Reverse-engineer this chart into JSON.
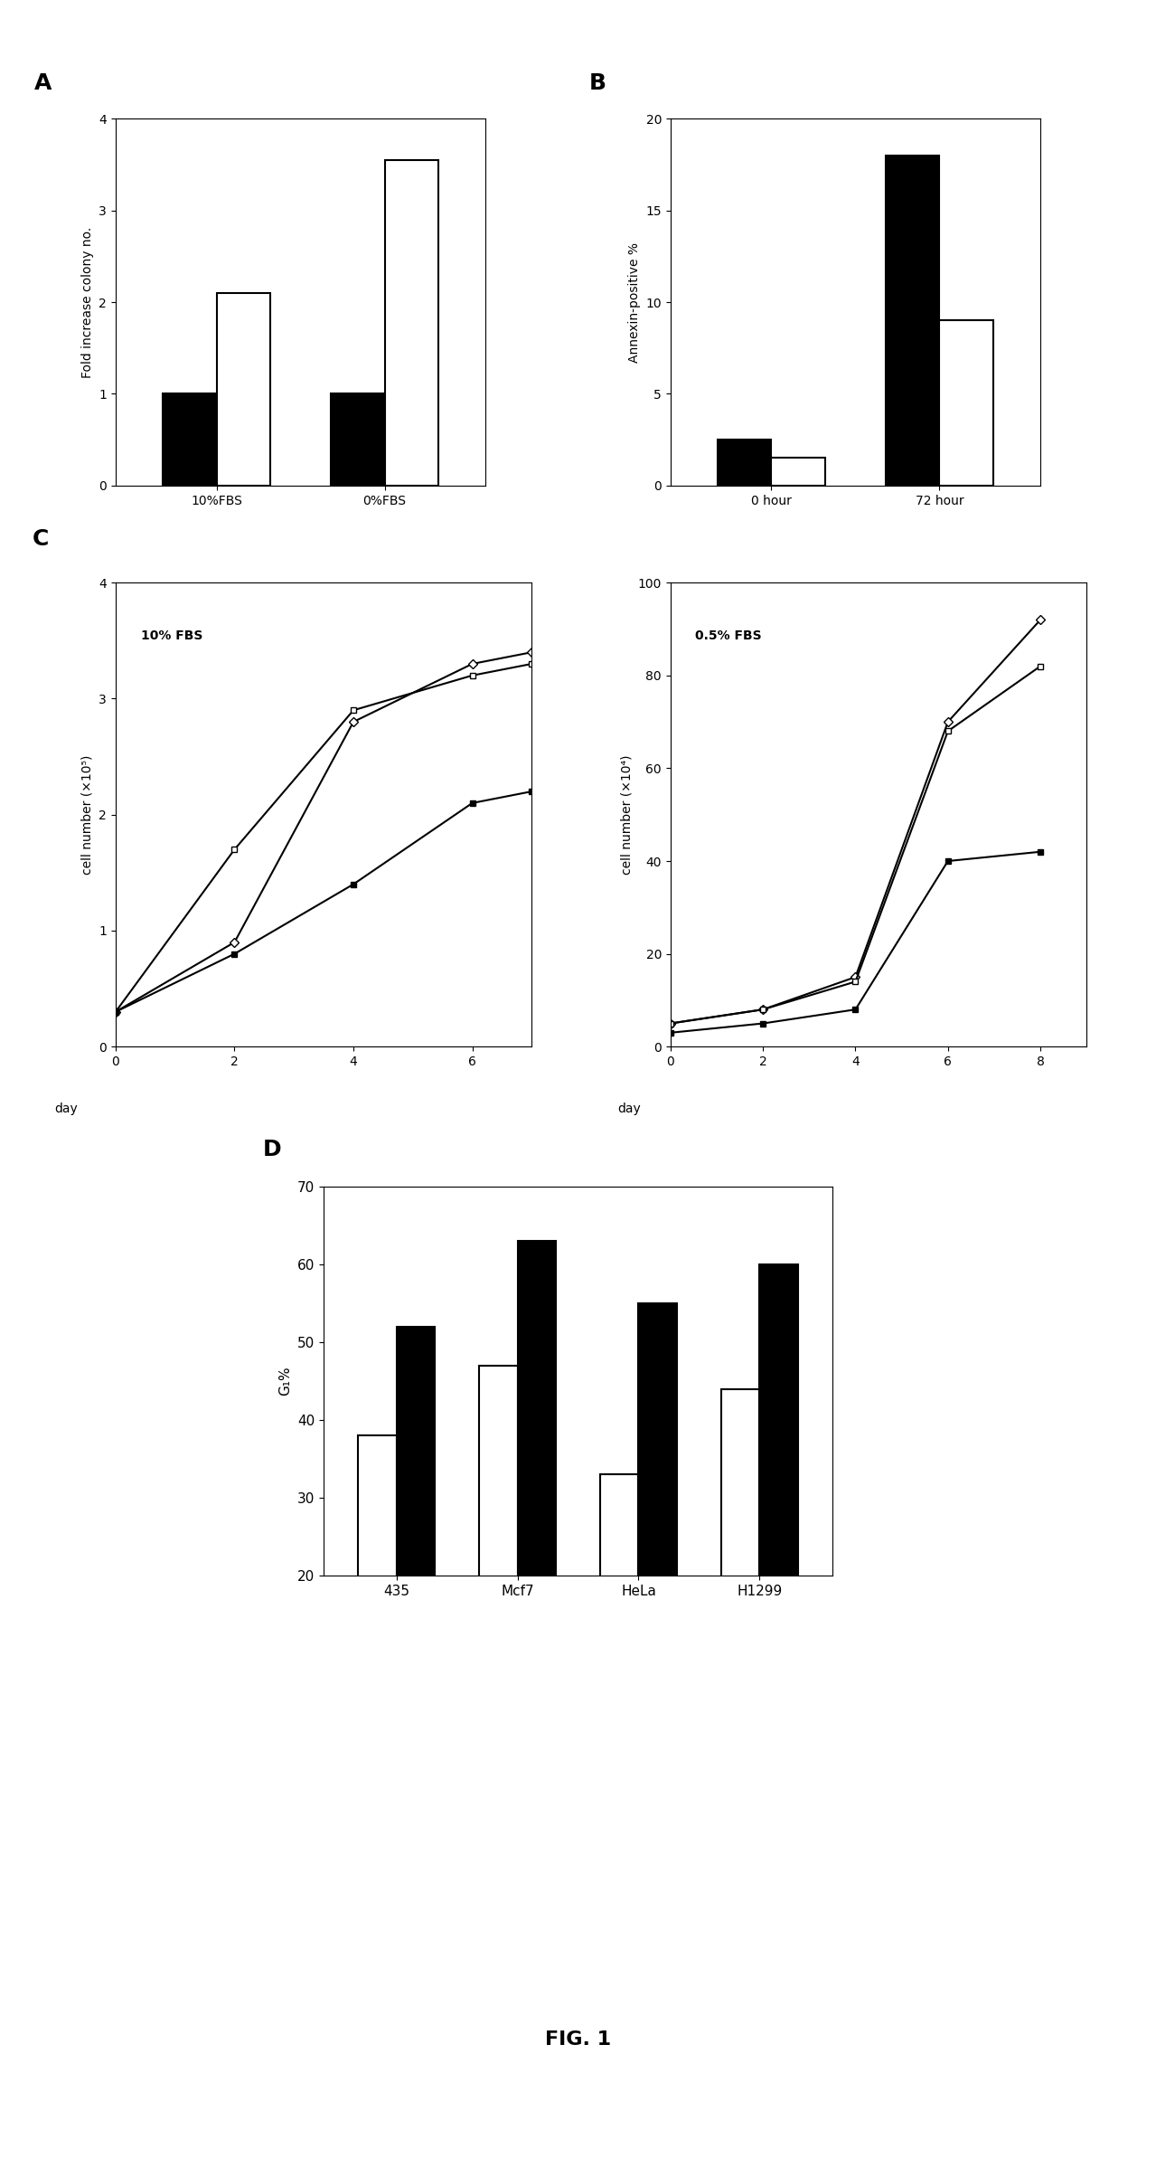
{
  "panel_A": {
    "title": "A",
    "groups": [
      "10%FBS",
      "0%FBS"
    ],
    "black_bars": [
      1.0,
      1.0
    ],
    "white_bars": [
      2.1,
      3.55
    ],
    "ylabel": "Fold increase colony no.",
    "ylim": [
      0,
      4
    ],
    "yticks": [
      0,
      1,
      2,
      3,
      4
    ]
  },
  "panel_B": {
    "title": "B",
    "groups": [
      "0 hour",
      "72 hour"
    ],
    "black_bars": [
      2.5,
      18.0
    ],
    "white_bars": [
      1.5,
      9.0
    ],
    "ylabel": "Annexin-positive %",
    "ylim": [
      0,
      20
    ],
    "yticks": [
      0,
      5,
      10,
      15,
      20
    ]
  },
  "panel_C_left": {
    "title_inset": "10% FBS",
    "panel_label": "C",
    "xlabel": "day",
    "ylabel": "cell number (×10⁵)",
    "xlim": [
      0,
      7
    ],
    "ylim": [
      0,
      4
    ],
    "yticks": [
      0,
      1,
      2,
      3,
      4
    ],
    "xticks": [
      0,
      2,
      4,
      6
    ],
    "series": {
      "diamond_open": {
        "x": [
          0,
          2,
          4,
          6,
          7
        ],
        "y": [
          0.3,
          0.9,
          2.8,
          3.3,
          3.4
        ]
      },
      "square_open": {
        "x": [
          0,
          2,
          4,
          6,
          7
        ],
        "y": [
          0.3,
          1.7,
          2.9,
          3.2,
          3.3
        ]
      },
      "square_filled": {
        "x": [
          0,
          2,
          4,
          6,
          7
        ],
        "y": [
          0.3,
          0.8,
          1.4,
          2.1,
          2.2
        ]
      }
    }
  },
  "panel_C_right": {
    "title_inset": "0.5% FBS",
    "xlabel": "day",
    "ylabel": "cell number (×10⁴)",
    "xlim": [
      0,
      9
    ],
    "ylim": [
      0,
      100
    ],
    "yticks": [
      0,
      20,
      40,
      60,
      80,
      100
    ],
    "xticks": [
      0,
      2,
      4,
      6,
      8
    ],
    "series": {
      "diamond_open": {
        "x": [
          0,
          2,
          4,
          6,
          8
        ],
        "y": [
          5,
          8,
          15,
          70,
          92
        ]
      },
      "square_open": {
        "x": [
          0,
          2,
          4,
          6,
          8
        ],
        "y": [
          5,
          8,
          14,
          68,
          82
        ]
      },
      "square_filled": {
        "x": [
          0,
          2,
          4,
          6,
          8
        ],
        "y": [
          3,
          5,
          8,
          40,
          42
        ]
      }
    }
  },
  "panel_D": {
    "title": "D",
    "categories": [
      "435",
      "Mcf7",
      "HeLa",
      "H1299"
    ],
    "white_bars": [
      38,
      47,
      33,
      44
    ],
    "black_bars": [
      52,
      63,
      55,
      60
    ],
    "ylabel": "G₁%",
    "ylim": [
      20,
      70
    ],
    "yticks": [
      20,
      30,
      40,
      50,
      60,
      70
    ]
  },
  "fig_label": "FIG. 1",
  "background_color": "#ffffff",
  "black_color": "#000000",
  "white_color": "#ffffff",
  "edge_color": "#000000"
}
